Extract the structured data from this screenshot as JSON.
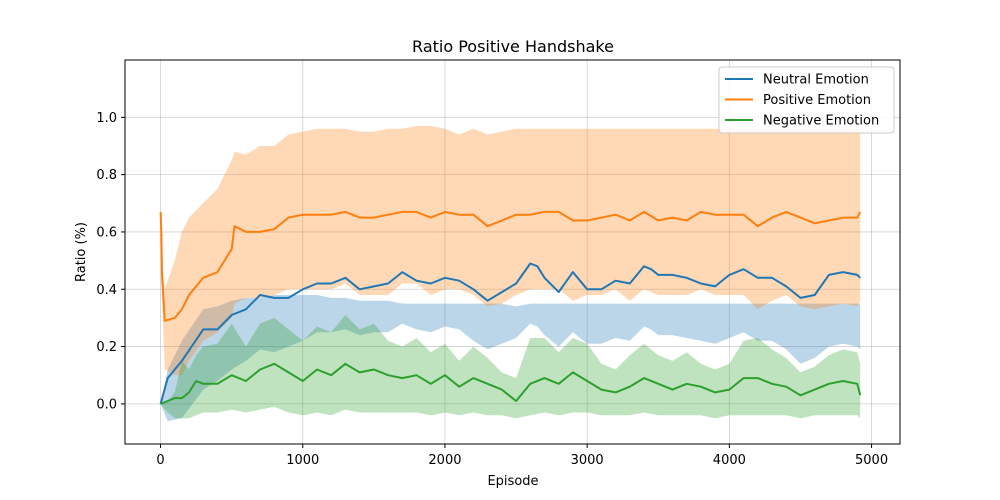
{
  "chart_data": {
    "type": "line",
    "title": "Ratio Positive Handshake",
    "xlabel": "Episode",
    "ylabel": "Ratio (%)",
    "xlim": [
      -250,
      5200
    ],
    "ylim": [
      -0.14,
      1.2
    ],
    "xticks": [
      0,
      1000,
      2000,
      3000,
      4000,
      5000
    ],
    "yticks": [
      0.0,
      0.2,
      0.4,
      0.6,
      0.8,
      1.0
    ],
    "xtick_labels": [
      "0",
      "1000",
      "2000",
      "3000",
      "4000",
      "5000"
    ],
    "ytick_labels": [
      "0.0",
      "0.2",
      "0.4",
      "0.6",
      "0.8",
      "1.0"
    ],
    "grid": true,
    "legend_position": "top-right",
    "series": [
      {
        "name": "Neutral Emotion",
        "color": "#1f77b4",
        "x": [
          0,
          50,
          150,
          300,
          400,
          500,
          600,
          700,
          800,
          900,
          1000,
          1100,
          1200,
          1300,
          1400,
          1500,
          1600,
          1700,
          1800,
          1900,
          2000,
          2100,
          2200,
          2300,
          2400,
          2500,
          2600,
          2650,
          2700,
          2800,
          2900,
          3000,
          3100,
          3200,
          3300,
          3400,
          3450,
          3500,
          3600,
          3700,
          3800,
          3900,
          4000,
          4100,
          4200,
          4300,
          4400,
          4500,
          4600,
          4700,
          4800,
          4900,
          4920
        ],
        "y": [
          0.0,
          0.09,
          0.15,
          0.26,
          0.26,
          0.31,
          0.33,
          0.38,
          0.37,
          0.37,
          0.4,
          0.42,
          0.42,
          0.44,
          0.4,
          0.41,
          0.42,
          0.46,
          0.43,
          0.42,
          0.44,
          0.43,
          0.4,
          0.36,
          0.39,
          0.42,
          0.49,
          0.48,
          0.44,
          0.39,
          0.46,
          0.4,
          0.4,
          0.43,
          0.42,
          0.48,
          0.47,
          0.45,
          0.45,
          0.44,
          0.42,
          0.41,
          0.45,
          0.47,
          0.44,
          0.44,
          0.41,
          0.37,
          0.38,
          0.45,
          0.46,
          0.45,
          0.44
        ],
        "band_upper": [
          0.0,
          0.12,
          0.22,
          0.33,
          0.34,
          0.36,
          0.37,
          0.37,
          0.38,
          0.38,
          0.38,
          0.38,
          0.37,
          0.37,
          0.36,
          0.36,
          0.36,
          0.35,
          0.35,
          0.35,
          0.35,
          0.35,
          0.35,
          0.35,
          0.35,
          0.34,
          0.35,
          0.35,
          0.35,
          0.35,
          0.35,
          0.35,
          0.35,
          0.35,
          0.35,
          0.35,
          0.35,
          0.35,
          0.35,
          0.35,
          0.35,
          0.35,
          0.35,
          0.35,
          0.35,
          0.35,
          0.35,
          0.35,
          0.35,
          0.35,
          0.35,
          0.35,
          0.35
        ],
        "band_lower": [
          0.0,
          -0.06,
          -0.05,
          0.05,
          0.08,
          0.12,
          0.15,
          0.19,
          0.18,
          0.2,
          0.22,
          0.25,
          0.25,
          0.26,
          0.24,
          0.25,
          0.25,
          0.28,
          0.26,
          0.25,
          0.27,
          0.26,
          0.22,
          0.19,
          0.21,
          0.23,
          0.28,
          0.27,
          0.24,
          0.2,
          0.25,
          0.21,
          0.21,
          0.23,
          0.22,
          0.27,
          0.26,
          0.24,
          0.24,
          0.23,
          0.22,
          0.21,
          0.23,
          0.25,
          0.22,
          0.22,
          0.19,
          0.14,
          0.16,
          0.2,
          0.21,
          0.2,
          0.19
        ]
      },
      {
        "name": "Positive Emotion",
        "color": "#ff7f0e",
        "x": [
          0,
          5,
          10,
          30,
          100,
          150,
          200,
          300,
          400,
          500,
          520,
          600,
          700,
          800,
          900,
          1000,
          1100,
          1200,
          1300,
          1400,
          1500,
          1600,
          1700,
          1800,
          1900,
          2000,
          2100,
          2200,
          2300,
          2400,
          2500,
          2600,
          2700,
          2800,
          2900,
          3000,
          3100,
          3200,
          3300,
          3400,
          3500,
          3600,
          3700,
          3800,
          3900,
          4000,
          4100,
          4200,
          4300,
          4400,
          4500,
          4600,
          4700,
          4800,
          4900,
          4920
        ],
        "y": [
          0.67,
          0.6,
          0.45,
          0.29,
          0.3,
          0.33,
          0.38,
          0.44,
          0.46,
          0.54,
          0.62,
          0.6,
          0.6,
          0.61,
          0.65,
          0.66,
          0.66,
          0.66,
          0.67,
          0.65,
          0.65,
          0.66,
          0.67,
          0.67,
          0.65,
          0.67,
          0.66,
          0.66,
          0.62,
          0.64,
          0.66,
          0.66,
          0.67,
          0.67,
          0.64,
          0.64,
          0.65,
          0.66,
          0.64,
          0.67,
          0.64,
          0.65,
          0.64,
          0.67,
          0.66,
          0.66,
          0.66,
          0.62,
          0.65,
          0.67,
          0.65,
          0.63,
          0.64,
          0.65,
          0.65,
          0.67
        ],
        "band_upper": [
          0.67,
          0.6,
          0.5,
          0.4,
          0.5,
          0.6,
          0.65,
          0.7,
          0.75,
          0.85,
          0.88,
          0.87,
          0.9,
          0.9,
          0.94,
          0.95,
          0.96,
          0.96,
          0.96,
          0.95,
          0.95,
          0.96,
          0.96,
          0.97,
          0.97,
          0.96,
          0.94,
          0.96,
          0.94,
          0.95,
          0.96,
          0.96,
          0.96,
          0.96,
          0.96,
          0.96,
          0.96,
          0.96,
          0.96,
          0.96,
          0.96,
          0.96,
          0.96,
          0.96,
          0.96,
          0.96,
          0.96,
          0.96,
          0.96,
          0.96,
          0.96,
          0.96,
          0.96,
          0.96,
          0.96,
          0.96
        ],
        "band_lower": [
          0.67,
          0.6,
          0.38,
          0.12,
          0.1,
          0.1,
          0.15,
          0.22,
          0.25,
          0.3,
          0.35,
          0.37,
          0.37,
          0.38,
          0.4,
          0.4,
          0.4,
          0.4,
          0.42,
          0.38,
          0.38,
          0.38,
          0.42,
          0.42,
          0.38,
          0.4,
          0.4,
          0.38,
          0.34,
          0.35,
          0.38,
          0.4,
          0.4,
          0.4,
          0.36,
          0.38,
          0.38,
          0.4,
          0.36,
          0.4,
          0.38,
          0.38,
          0.38,
          0.4,
          0.38,
          0.38,
          0.38,
          0.33,
          0.36,
          0.38,
          0.34,
          0.33,
          0.34,
          0.35,
          0.34,
          0.36
        ]
      },
      {
        "name": "Negative Emotion",
        "color": "#2ca02c",
        "x": [
          0,
          50,
          100,
          150,
          200,
          250,
          300,
          400,
          500,
          600,
          700,
          800,
          900,
          1000,
          1100,
          1200,
          1300,
          1400,
          1500,
          1600,
          1700,
          1800,
          1900,
          2000,
          2100,
          2200,
          2300,
          2400,
          2500,
          2600,
          2700,
          2800,
          2900,
          3000,
          3100,
          3200,
          3300,
          3400,
          3500,
          3600,
          3700,
          3800,
          3900,
          4000,
          4100,
          4200,
          4300,
          4400,
          4500,
          4600,
          4700,
          4800,
          4900,
          4920
        ],
        "y": [
          0.0,
          0.01,
          0.02,
          0.02,
          0.04,
          0.08,
          0.07,
          0.07,
          0.1,
          0.08,
          0.12,
          0.14,
          0.11,
          0.08,
          0.12,
          0.1,
          0.14,
          0.11,
          0.12,
          0.1,
          0.09,
          0.1,
          0.07,
          0.1,
          0.06,
          0.09,
          0.07,
          0.05,
          0.01,
          0.07,
          0.09,
          0.07,
          0.11,
          0.08,
          0.05,
          0.04,
          0.06,
          0.09,
          0.07,
          0.05,
          0.07,
          0.06,
          0.04,
          0.05,
          0.09,
          0.09,
          0.07,
          0.06,
          0.03,
          0.05,
          0.07,
          0.08,
          0.07,
          0.03
        ],
        "band_upper": [
          0.0,
          0.01,
          0.04,
          0.15,
          0.12,
          0.17,
          0.2,
          0.21,
          0.28,
          0.2,
          0.28,
          0.3,
          0.26,
          0.22,
          0.27,
          0.25,
          0.31,
          0.26,
          0.28,
          0.22,
          0.2,
          0.23,
          0.18,
          0.21,
          0.15,
          0.2,
          0.16,
          0.11,
          0.09,
          0.23,
          0.23,
          0.18,
          0.23,
          0.21,
          0.14,
          0.12,
          0.17,
          0.21,
          0.17,
          0.15,
          0.18,
          0.14,
          0.12,
          0.14,
          0.22,
          0.23,
          0.19,
          0.16,
          0.11,
          0.13,
          0.17,
          0.19,
          0.18,
          0.14
        ],
        "band_lower": [
          0.0,
          -0.03,
          -0.05,
          -0.05,
          -0.05,
          -0.04,
          -0.03,
          -0.03,
          -0.02,
          -0.03,
          -0.02,
          -0.01,
          -0.03,
          -0.04,
          -0.03,
          -0.04,
          -0.02,
          -0.03,
          -0.03,
          -0.03,
          -0.03,
          -0.03,
          -0.04,
          -0.03,
          -0.04,
          -0.03,
          -0.04,
          -0.04,
          -0.05,
          -0.04,
          -0.03,
          -0.04,
          -0.03,
          -0.03,
          -0.04,
          -0.04,
          -0.04,
          -0.03,
          -0.04,
          -0.04,
          -0.04,
          -0.04,
          -0.05,
          -0.04,
          -0.04,
          -0.04,
          -0.04,
          -0.04,
          -0.05,
          -0.04,
          -0.04,
          -0.04,
          -0.04,
          -0.05
        ]
      }
    ]
  }
}
